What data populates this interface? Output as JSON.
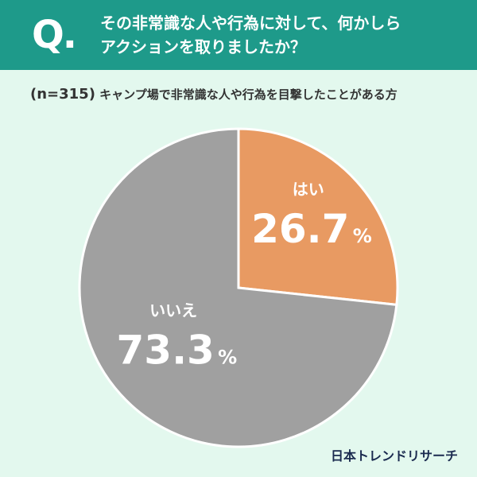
{
  "header": {
    "q_mark": "Q.",
    "question_line1": "その非常識な人や行為に対して、何かしら",
    "question_line2": "アクションを取りましたか？"
  },
  "subtitle": {
    "n": "(n=315)",
    "text": "キャンプ場で非常識な人や行為を目撃したことがある方"
  },
  "brand": "日本トレンドリサーチ",
  "chart_data": {
    "type": "pie",
    "title": "",
    "start": "12 o'clock",
    "direction": "clockwise",
    "slices": [
      {
        "label": "はい",
        "value": 26.7,
        "display": "26.7",
        "unit": "%",
        "color": "#e89a62"
      },
      {
        "label": "いいえ",
        "value": 73.3,
        "display": "73.3",
        "unit": "%",
        "color": "#a0a0a0"
      }
    ]
  }
}
